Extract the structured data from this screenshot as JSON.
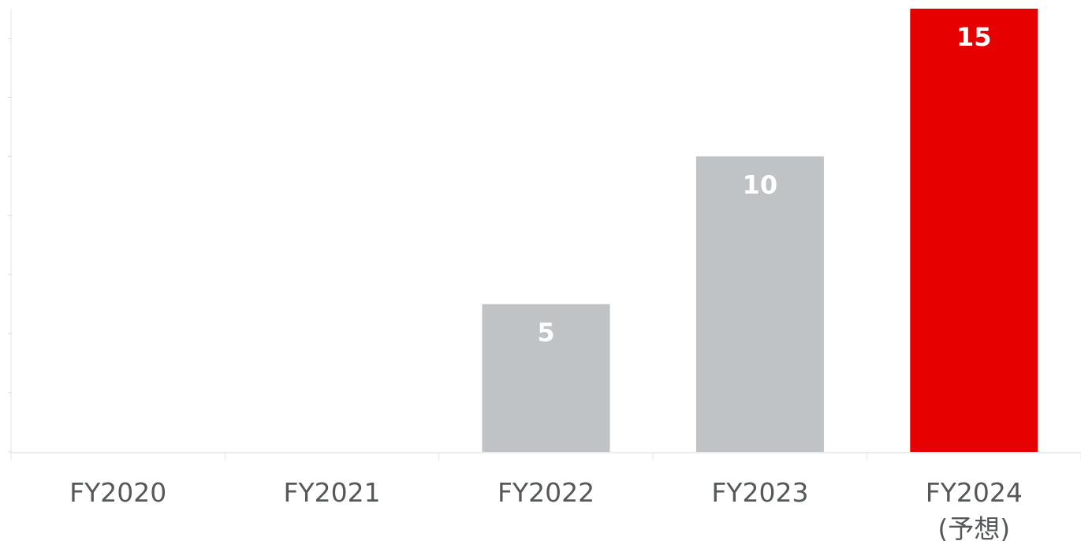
{
  "chart_data": {
    "type": "bar",
    "categories": [
      "FY2020",
      "FY2021",
      "FY2022",
      "FY2023",
      "FY2024\n(予想)"
    ],
    "values": [
      null,
      null,
      5,
      10,
      15
    ],
    "colors": [
      "#c0c3c6",
      "#c0c3c6",
      "#c0c3c6",
      "#c0c3c6",
      "#e60000"
    ],
    "ylim": [
      0,
      15
    ],
    "yticks": [
      0,
      2,
      4,
      6,
      8,
      10,
      12,
      14
    ],
    "grid": false
  }
}
